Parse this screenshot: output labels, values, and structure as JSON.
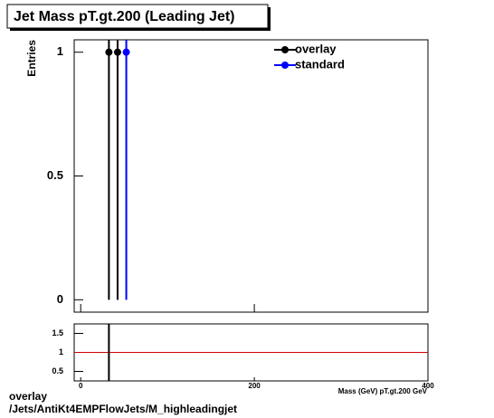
{
  "chart_data": [
    {
      "type": "scatter",
      "title": "Jet Mass pT.gt.200 (Leading Jet)",
      "ylabel": "Entries",
      "xlim": [
        -7.5,
        400
      ],
      "ylim": [
        -0.05,
        1.05
      ],
      "xticks": [
        0,
        200,
        400
      ],
      "yticks": [
        0,
        0.5,
        1
      ],
      "series": [
        {
          "name": "overlay",
          "color": "#000000",
          "x": [
            32.5,
            42.5
          ],
          "values": [
            1,
            1
          ],
          "errors": [
            1,
            1
          ]
        },
        {
          "name": "standard",
          "color": "#0000ff",
          "x": [
            52.5
          ],
          "values": [
            1
          ],
          "errors": [
            1
          ]
        }
      ]
    },
    {
      "type": "scatter",
      "xlabel": "Mass (GeV) pT.gt.200 GeV",
      "xlim": [
        -7.5,
        400
      ],
      "ylim": [
        0.25,
        1.75
      ],
      "xticks": [
        0,
        200,
        400
      ],
      "yticks": [
        0.5,
        1,
        1.5
      ],
      "reference_line": 1,
      "reference_color": "#cc0000",
      "color": "#000000",
      "x": [
        32.5
      ],
      "values": [
        1
      ],
      "errors": [
        1
      ]
    }
  ],
  "footer": [
    "overlay",
    "/Jets/AntiKt4EMPFlowJets/M_highleadingjet"
  ]
}
